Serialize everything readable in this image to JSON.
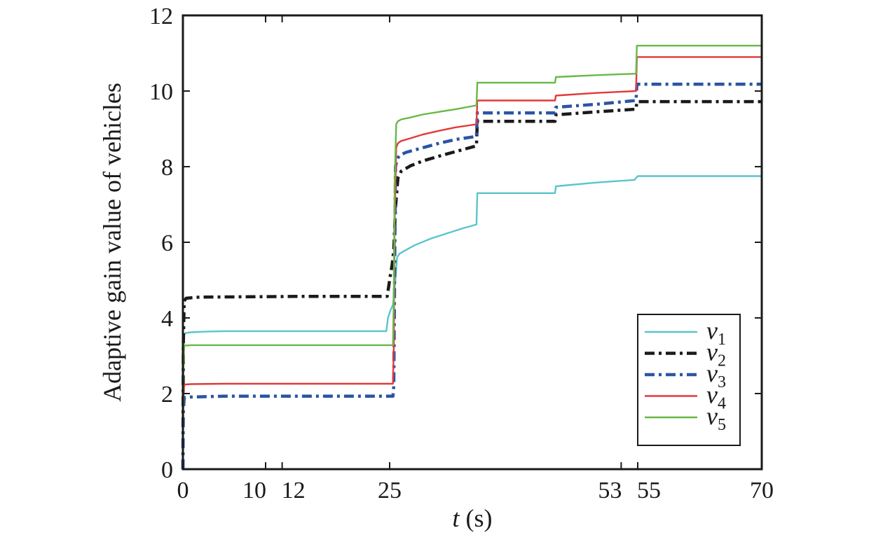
{
  "chart_data": {
    "type": "line",
    "title": "",
    "xlabel_var": "t",
    "xlabel_unit": " (s)",
    "ylabel": "Adaptive gain value of vehicles",
    "xlim": [
      0,
      70
    ],
    "ylim": [
      0,
      12
    ],
    "x_ticks": [
      0,
      10,
      12,
      25,
      53,
      55,
      70
    ],
    "x_tick_labels": [
      "0",
      "10",
      "12",
      "25",
      "53",
      "55",
      "70"
    ],
    "y_ticks": [
      0,
      2,
      4,
      6,
      8,
      10,
      12
    ],
    "y_tick_labels": [
      "0",
      "2",
      "4",
      "6",
      "8",
      "10",
      "12"
    ],
    "grid": false,
    "legend_position": "bottom-right",
    "series": [
      {
        "name": "v",
        "sub": "1",
        "color": "#5bc4cc",
        "dash": "solid",
        "x": [
          0,
          0.05,
          0.15,
          0.3,
          1,
          3,
          5,
          10,
          15,
          20,
          24.6,
          24.8,
          25.1,
          25.4,
          25.7,
          25.9,
          26.2,
          27,
          28,
          30,
          32,
          34,
          35.5,
          35.6,
          36,
          40,
          44,
          45,
          45.1,
          46,
          50,
          54.6,
          55,
          60,
          65,
          70
        ],
        "y": [
          0,
          2.5,
          3.55,
          3.6,
          3.62,
          3.64,
          3.65,
          3.65,
          3.65,
          3.65,
          3.65,
          4.0,
          4.2,
          4.35,
          5.0,
          5.6,
          5.7,
          5.8,
          5.92,
          6.1,
          6.24,
          6.38,
          6.47,
          7.3,
          7.3,
          7.3,
          7.3,
          7.3,
          7.48,
          7.5,
          7.58,
          7.65,
          7.75,
          7.75,
          7.75,
          7.75
        ]
      },
      {
        "name": "v",
        "sub": "2",
        "color": "#1a1a1a",
        "dash": "dashdot-bold",
        "x": [
          0,
          0.05,
          0.15,
          0.4,
          2,
          8,
          15,
          20,
          24.7,
          24.9,
          25.1,
          25.3,
          25.5,
          25.7,
          26.0,
          26.4,
          27.5,
          29,
          31,
          33,
          35.5,
          35.6,
          40,
          45,
          45.1,
          50,
          54.8,
          54.9,
          60,
          70
        ],
        "y": [
          0,
          3.3,
          4.45,
          4.52,
          4.55,
          4.56,
          4.57,
          4.57,
          4.57,
          4.85,
          5.15,
          5.4,
          5.8,
          6.9,
          7.7,
          7.88,
          8.02,
          8.15,
          8.28,
          8.4,
          8.55,
          9.2,
          9.2,
          9.2,
          9.37,
          9.45,
          9.52,
          9.72,
          9.72,
          9.72
        ]
      },
      {
        "name": "v",
        "sub": "3",
        "color": "#2a55a6",
        "dash": "dashdot-bold",
        "x": [
          0,
          0.05,
          0.15,
          0.3,
          1,
          5,
          10,
          15,
          20,
          25.4,
          25.5,
          25.7,
          25.9,
          26.2,
          27,
          29,
          31,
          33,
          35.5,
          35.6,
          40,
          45,
          45.1,
          50,
          54.8,
          54.9,
          60,
          70
        ],
        "y": [
          0,
          1.5,
          1.88,
          1.9,
          1.91,
          1.93,
          1.93,
          1.93,
          1.93,
          1.93,
          2.2,
          8.0,
          8.2,
          8.3,
          8.38,
          8.5,
          8.62,
          8.72,
          8.8,
          9.42,
          9.42,
          9.42,
          9.57,
          9.65,
          9.75,
          10.18,
          10.18,
          10.18
        ]
      },
      {
        "name": "v",
        "sub": "4",
        "color": "#e2393a",
        "dash": "solid",
        "x": [
          0,
          0.05,
          0.15,
          0.3,
          1,
          5,
          10,
          15,
          20,
          25.4,
          25.5,
          25.6,
          25.8,
          26.0,
          26.4,
          27.5,
          29,
          31,
          33,
          35.5,
          35.6,
          40,
          45,
          45.1,
          50,
          54.8,
          54.9,
          60,
          70
        ],
        "y": [
          0,
          1.8,
          2.22,
          2.24,
          2.25,
          2.26,
          2.26,
          2.26,
          2.26,
          2.26,
          3.2,
          6.5,
          8.5,
          8.62,
          8.68,
          8.75,
          8.85,
          8.95,
          9.04,
          9.12,
          9.75,
          9.75,
          9.75,
          9.88,
          9.95,
          10.0,
          10.9,
          10.9,
          10.9
        ]
      },
      {
        "name": "v",
        "sub": "5",
        "color": "#69b845",
        "dash": "solid",
        "x": [
          0,
          0.05,
          0.15,
          0.3,
          1,
          5,
          10,
          15,
          20,
          25.4,
          25.5,
          25.6,
          25.8,
          26.0,
          26.4,
          27.5,
          29,
          31,
          33,
          35.5,
          35.6,
          40,
          45,
          45.1,
          50,
          54.8,
          54.9,
          60,
          70
        ],
        "y": [
          0,
          2.6,
          3.25,
          3.27,
          3.28,
          3.28,
          3.28,
          3.28,
          3.28,
          3.28,
          4.5,
          7.5,
          9.13,
          9.2,
          9.25,
          9.3,
          9.38,
          9.45,
          9.52,
          9.62,
          10.22,
          10.22,
          10.22,
          10.37,
          10.42,
          10.46,
          11.2,
          11.2,
          11.2
        ]
      }
    ]
  }
}
